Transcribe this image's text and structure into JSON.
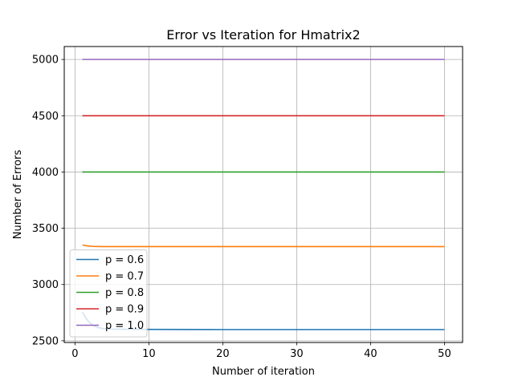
{
  "chart_data": {
    "type": "line",
    "title": "Error vs Iteration for Hmatrix2",
    "xlabel": "Number of iteration",
    "ylabel": "Number of Errors",
    "xlim": [
      -1.45,
      52.45
    ],
    "ylim": [
      2485,
      5115
    ],
    "xticks": [
      0,
      10,
      20,
      30,
      40,
      50
    ],
    "yticks": [
      2500,
      3000,
      3500,
      4000,
      4500,
      5000
    ],
    "grid": true,
    "legend_position": "lower-left",
    "series": [
      {
        "name": "p = 0.6",
        "color": "#1f77b4",
        "x": [
          1,
          1.5,
          2,
          2.5,
          3,
          3.5,
          4,
          5,
          6,
          8,
          10,
          20,
          30,
          40,
          50
        ],
        "y": [
          2755,
          2700,
          2660,
          2635,
          2620,
          2612,
          2607,
          2604,
          2603,
          2602,
          2601,
          2600,
          2600,
          2600,
          2600
        ]
      },
      {
        "name": "p = 0.7",
        "color": "#ff7f0e",
        "x": [
          1,
          1.5,
          2,
          2.5,
          3,
          4,
          5,
          10,
          20,
          30,
          40,
          50
        ],
        "y": [
          3352,
          3345,
          3341,
          3339,
          3338,
          3337,
          3337,
          3337,
          3337,
          3337,
          3337,
          3337
        ]
      },
      {
        "name": "p = 0.8",
        "color": "#2ca02c",
        "x": [
          1,
          50
        ],
        "y": [
          4000,
          4000
        ]
      },
      {
        "name": "p = 0.9",
        "color": "#d62728",
        "x": [
          1,
          50
        ],
        "y": [
          4500,
          4500
        ]
      },
      {
        "name": "p = 1.0",
        "color": "#9467bd",
        "x": [
          1,
          50
        ],
        "y": [
          5000,
          5000
        ]
      }
    ]
  }
}
